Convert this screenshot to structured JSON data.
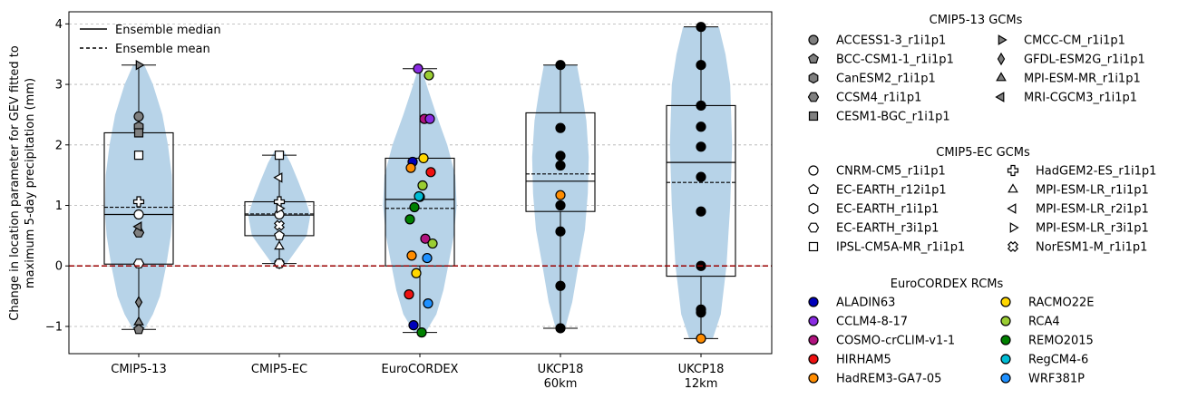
{
  "chart_data": {
    "type": "violin+box+scatter",
    "ylabel": "Change in location parameter for GEV fitted to\nmaximum 5-day precipitation (mm)",
    "ylim": [
      -1.45,
      4.2
    ],
    "yticks": [
      -1,
      0,
      1,
      2,
      3,
      4
    ],
    "grid": "horizontal dashed",
    "reference_line": {
      "y": 0,
      "color": "#990000",
      "style": "dashed"
    },
    "categories": [
      "CMIP5-13",
      "CMIP5-EC",
      "EuroCORDEX",
      "UKCP18\n60km",
      "UKCP18\n12km"
    ],
    "stat_legend": {
      "median": "Ensemble median",
      "mean": "Ensemble mean",
      "placement": "top-left"
    },
    "groups": [
      {
        "name": "CMIP5-13",
        "box": {
          "q1": 0.03,
          "median": 0.85,
          "q3": 2.2,
          "whisker_low": -1.05,
          "whisker_high": 3.32
        },
        "mean": 0.97,
        "violin": [
          [
            -1.05,
            0.12
          ],
          [
            -0.8,
            0.3
          ],
          [
            -0.5,
            0.45
          ],
          [
            0,
            0.58
          ],
          [
            0.5,
            0.68
          ],
          [
            0.9,
            0.72
          ],
          [
            1.5,
            0.7
          ],
          [
            2.0,
            0.62
          ],
          [
            2.5,
            0.5
          ],
          [
            3.0,
            0.3
          ],
          [
            3.32,
            0.12
          ]
        ],
        "points": [
          {
            "label": "ACCESS1-3_r1i1p1",
            "y": 2.47
          },
          {
            "label": "BCC-CSM1-1_r1i1p1",
            "y": -1.05
          },
          {
            "label": "CanESM2_r1i1p1",
            "y": 2.3
          },
          {
            "label": "CCSM4_r1i1p1",
            "y": 0.55
          },
          {
            "label": "CESM1-BGC_r1i1p1",
            "y": 2.2
          },
          {
            "label": "CMCC-CM_r1i1p1",
            "y": 3.32
          },
          {
            "label": "GFDL-ESM2G_r1i1p1",
            "y": -0.6
          },
          {
            "label": "MPI-ESM-MR_r1i1p1",
            "y": -0.93
          },
          {
            "label": "MRI-CGCM3_r1i1p1",
            "y": 0.65
          },
          {
            "label": "CNRM-CM5_r1i1p1",
            "y": 0.85
          },
          {
            "label": "EC-EARTH_r3i1p1",
            "y": 0.04
          },
          {
            "label": "IPSL-CM5A-MR_r1i1p1",
            "y": 1.83
          },
          {
            "label": "HadGEM2-ES_r1i1p1",
            "y": 1.06
          }
        ]
      },
      {
        "name": "CMIP5-EC",
        "box": {
          "q1": 0.5,
          "median": 0.84,
          "q3": 1.06,
          "whisker_low": 0.04,
          "whisker_high": 1.83
        },
        "mean": 0.86,
        "violin": [
          [
            0.0,
            0.12
          ],
          [
            0.25,
            0.35
          ],
          [
            0.5,
            0.58
          ],
          [
            0.84,
            0.66
          ],
          [
            1.1,
            0.55
          ],
          [
            1.4,
            0.4
          ],
          [
            1.7,
            0.24
          ],
          [
            1.9,
            0.1
          ]
        ],
        "points": [
          {
            "label": "CNRM-CM5_r1i1p1",
            "y": 0.85
          },
          {
            "label": "EC-EARTH_r12i1p1",
            "y": 0.5
          },
          {
            "label": "EC-EARTH_r1i1p1",
            "y": 0.04
          },
          {
            "label": "EC-EARTH_r3i1p1",
            "y": 0.04
          },
          {
            "label": "IPSL-CM5A-MR_r1i1p1",
            "y": 1.83
          },
          {
            "label": "HadGEM2-ES_r1i1p1",
            "y": 1.06
          },
          {
            "label": "MPI-ESM-LR_r1i1p1",
            "y": 0.32
          },
          {
            "label": "MPI-ESM-LR_r2i1p1",
            "y": 1.46
          },
          {
            "label": "MPI-ESM-LR_r3i1p1",
            "y": 0.95
          },
          {
            "label": "NorESM1-M_r1i1p1",
            "y": 0.67
          }
        ]
      },
      {
        "name": "EuroCORDEX",
        "box": {
          "q1": 0.0,
          "median": 1.1,
          "q3": 1.78,
          "whisker_low": -1.1,
          "whisker_high": 3.26
        },
        "mean": 0.95,
        "violin": [
          [
            -1.1,
            0.12
          ],
          [
            -0.8,
            0.35
          ],
          [
            -0.4,
            0.5
          ],
          [
            0,
            0.6
          ],
          [
            0.5,
            0.72
          ],
          [
            1.0,
            0.78
          ],
          [
            1.5,
            0.75
          ],
          [
            2.0,
            0.58
          ],
          [
            2.5,
            0.35
          ],
          [
            2.9,
            0.18
          ],
          [
            3.2,
            0.06
          ]
        ],
        "points": [
          {
            "label": "ALADIN63",
            "y": 1.72
          },
          {
            "label": "CCLM4-8-17",
            "y": 3.26
          },
          {
            "label": "COSMO-crCLIM-v1-1",
            "y": 0.45
          },
          {
            "label": "HIRHAM5",
            "y": 1.55
          },
          {
            "label": "HadREM3-GA7-05",
            "y": 1.62
          },
          {
            "label": "RACMO22E",
            "y": 1.78
          },
          {
            "label": "RCA4",
            "y": 3.15
          },
          {
            "label": "REMO2015",
            "y": 0.97
          },
          {
            "label": "RegCM4-6",
            "y": 1.14
          },
          {
            "label": "WRF381P",
            "y": 0.13
          },
          {
            "label": "HIRHAM5",
            "y": -0.47
          },
          {
            "label": "REMO2015",
            "y": -1.1
          },
          {
            "label": "RCA4",
            "y": 0.37
          },
          {
            "label": "RACMO22E",
            "y": -0.12
          },
          {
            "label": "WRF381P",
            "y": -0.62
          },
          {
            "label": "COSMO-crCLIM-v1-1",
            "y": 2.43
          },
          {
            "label": "HadREM3-GA7-05",
            "y": 0.17
          },
          {
            "label": "RegCM4-6",
            "y": 1.15
          },
          {
            "label": "CCLM4-8-17",
            "y": 2.43
          },
          {
            "label": "ALADIN63",
            "y": -0.98
          },
          {
            "label": "RCA4",
            "y": 1.33
          },
          {
            "label": "REMO2015",
            "y": 0.77
          }
        ]
      },
      {
        "name": "UKCP18 60km",
        "box": {
          "q1": 0.9,
          "median": 1.4,
          "q3": 2.53,
          "whisker_low": -1.03,
          "whisker_high": 3.32
        },
        "mean": 1.52,
        "violin": [
          [
            -1.03,
            0.1
          ],
          [
            -0.6,
            0.25
          ],
          [
            0,
            0.38
          ],
          [
            0.6,
            0.52
          ],
          [
            1.2,
            0.58
          ],
          [
            1.8,
            0.6
          ],
          [
            2.4,
            0.55
          ],
          [
            2.9,
            0.45
          ],
          [
            3.32,
            0.35
          ]
        ],
        "points": [
          {
            "label": "HadREM3-GA7-05",
            "y": 1.17
          },
          {
            "y": 3.32
          },
          {
            "y": 2.28
          },
          {
            "y": 1.82
          },
          {
            "y": 1.66
          },
          {
            "y": 1.0
          },
          {
            "y": 0.57
          },
          {
            "y": -0.33
          },
          {
            "y": -1.03
          }
        ]
      },
      {
        "name": "UKCP18 12km",
        "box": {
          "q1": -0.17,
          "median": 1.71,
          "q3": 2.65,
          "whisker_low": -1.2,
          "whisker_high": 3.95
        },
        "mean": 1.38,
        "violin": [
          [
            -1.2,
            0.25
          ],
          [
            -0.8,
            0.42
          ],
          [
            0,
            0.54
          ],
          [
            1.0,
            0.62
          ],
          [
            2.0,
            0.66
          ],
          [
            3.0,
            0.62
          ],
          [
            3.5,
            0.52
          ],
          [
            3.95,
            0.38
          ]
        ],
        "points": [
          {
            "label": "HadREM3-GA7-05",
            "y": -1.2
          },
          {
            "y": 3.95
          },
          {
            "y": 3.32
          },
          {
            "y": 2.65
          },
          {
            "y": 2.3
          },
          {
            "y": 1.97
          },
          {
            "y": 1.47
          },
          {
            "y": 0.9
          },
          {
            "y": 0.0
          },
          {
            "y": -0.72
          },
          {
            "y": -0.77
          }
        ]
      }
    ]
  },
  "legend": {
    "cmip513": {
      "title": "CMIP5-13 GCMs",
      "items": [
        {
          "label": "ACCESS1-3_r1i1p1",
          "marker": "circle",
          "color": "#7f7f7f"
        },
        {
          "label": "BCC-CSM1-1_r1i1p1",
          "marker": "pentagon",
          "color": "#7f7f7f"
        },
        {
          "label": "CanESM2_r1i1p1",
          "marker": "hexagon",
          "color": "#7f7f7f"
        },
        {
          "label": "CCSM4_r1i1p1",
          "marker": "hexagon2",
          "color": "#7f7f7f"
        },
        {
          "label": "CESM1-BGC_r1i1p1",
          "marker": "square",
          "color": "#7f7f7f"
        },
        {
          "label": "CMCC-CM_r1i1p1",
          "marker": "triangle-right",
          "color": "#7f7f7f"
        },
        {
          "label": "GFDL-ESM2G_r1i1p1",
          "marker": "thin-diamond",
          "color": "#7f7f7f"
        },
        {
          "label": "MPI-ESM-MR_r1i1p1",
          "marker": "triangle-up",
          "color": "#7f7f7f"
        },
        {
          "label": "MRI-CGCM3_r1i1p1",
          "marker": "triangle-left",
          "color": "#7f7f7f"
        }
      ]
    },
    "cmip5ec": {
      "title": "CMIP5-EC GCMs",
      "items": [
        {
          "label": "CNRM-CM5_r1i1p1",
          "marker": "circle",
          "color": "#ffffff"
        },
        {
          "label": "EC-EARTH_r12i1p1",
          "marker": "pentagon",
          "color": "#ffffff"
        },
        {
          "label": "EC-EARTH_r1i1p1",
          "marker": "hexagon",
          "color": "#ffffff"
        },
        {
          "label": "EC-EARTH_r3i1p1",
          "marker": "hexagon2",
          "color": "#ffffff"
        },
        {
          "label": "IPSL-CM5A-MR_r1i1p1",
          "marker": "square",
          "color": "#ffffff"
        },
        {
          "label": "HadGEM2-ES_r1i1p1",
          "marker": "plus",
          "color": "#ffffff"
        },
        {
          "label": "MPI-ESM-LR_r1i1p1",
          "marker": "triangle-up",
          "color": "#ffffff"
        },
        {
          "label": "MPI-ESM-LR_r2i1p1",
          "marker": "triangle-left",
          "color": "#ffffff"
        },
        {
          "label": "MPI-ESM-LR_r3i1p1",
          "marker": "triangle-right",
          "color": "#ffffff"
        },
        {
          "label": "NorESM1-M_r1i1p1",
          "marker": "x",
          "color": "#ffffff"
        }
      ]
    },
    "eurocordex": {
      "title": "EuroCORDEX RCMs",
      "items": [
        {
          "label": "ALADIN63",
          "marker": "circle",
          "color": "#0000bb"
        },
        {
          "label": "CCLM4-8-17",
          "marker": "circle",
          "color": "#8a2be2"
        },
        {
          "label": "COSMO-crCLIM-v1-1",
          "marker": "circle",
          "color": "#b0137e"
        },
        {
          "label": "HIRHAM5",
          "marker": "circle",
          "color": "#ee1111"
        },
        {
          "label": "HadREM3-GA7-05",
          "marker": "circle",
          "color": "#ff8c00"
        },
        {
          "label": "RACMO22E",
          "marker": "circle",
          "color": "#ffd700"
        },
        {
          "label": "RCA4",
          "marker": "circle",
          "color": "#9acd32"
        },
        {
          "label": "REMO2015",
          "marker": "circle",
          "color": "#008000"
        },
        {
          "label": "RegCM4-6",
          "marker": "circle",
          "color": "#00bcd4"
        },
        {
          "label": "WRF381P",
          "marker": "circle",
          "color": "#1e90ff"
        }
      ]
    }
  },
  "colors": {
    "violin": "#b7d3e8",
    "ukcp_point": "#000000",
    "zero_line": "#990000",
    "grid": "#b0b0b0"
  }
}
